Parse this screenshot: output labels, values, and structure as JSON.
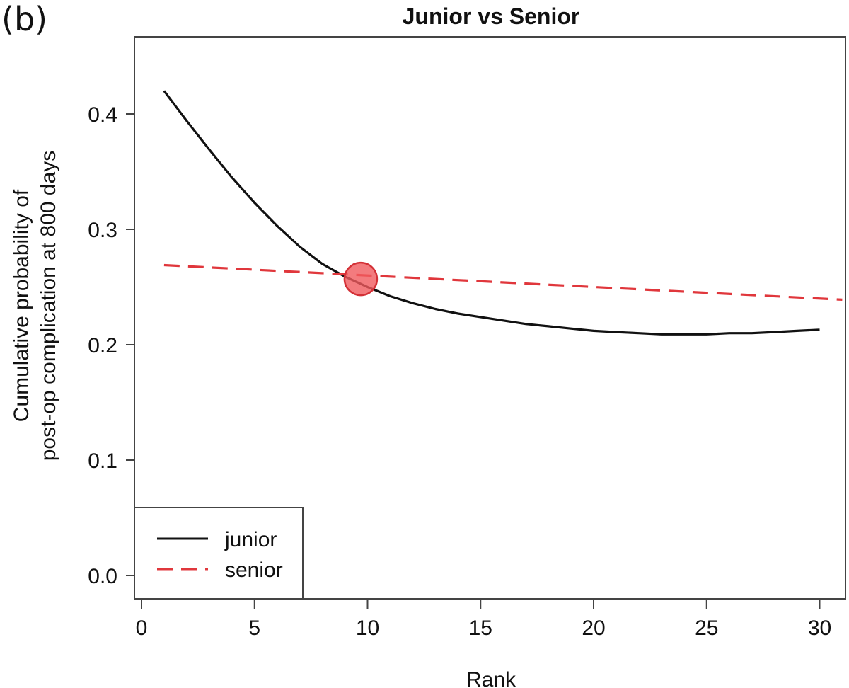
{
  "panel_label": "(b)",
  "chart_data": {
    "type": "line",
    "title": "Junior vs Senior",
    "xlabel": "Rank",
    "ylabel_lines": [
      "Cumulative probability of",
      "post-op complication at 800 days"
    ],
    "xlim": [
      0,
      30.2
    ],
    "ylim": [
      0,
      0.46
    ],
    "xticks": [
      0,
      5,
      10,
      15,
      20,
      25,
      30
    ],
    "xtick_labels": [
      "0",
      "5",
      "10",
      "15",
      "20",
      "25",
      "30"
    ],
    "yticks": [
      0.0,
      0.1,
      0.2,
      0.3,
      0.4
    ],
    "ytick_labels": [
      "0.0",
      "0.1",
      "0.2",
      "0.3",
      "0.4"
    ],
    "grid": false,
    "legend_position": "bottom-left",
    "series": [
      {
        "name": "junior",
        "color": "#111111",
        "dash": "solid",
        "x": [
          1,
          2,
          3,
          4,
          5,
          6,
          7,
          8,
          9,
          10,
          11,
          12,
          13,
          14,
          15,
          16,
          17,
          18,
          19,
          20,
          21,
          22,
          23,
          24,
          25,
          26,
          27,
          28,
          29,
          30
        ],
        "y": [
          0.42,
          0.394,
          0.369,
          0.345,
          0.323,
          0.303,
          0.285,
          0.27,
          0.259,
          0.25,
          0.242,
          0.236,
          0.231,
          0.227,
          0.224,
          0.221,
          0.218,
          0.216,
          0.214,
          0.212,
          0.211,
          0.21,
          0.209,
          0.209,
          0.209,
          0.21,
          0.21,
          0.211,
          0.212,
          0.213
        ]
      },
      {
        "name": "senior",
        "color": "#e0373c",
        "dash": "dashed",
        "x": [
          1,
          31
        ],
        "y": [
          0.269,
          0.239
        ]
      }
    ],
    "annotations": [
      {
        "type": "circle-marker",
        "x": 9.7,
        "y": 0.257,
        "color": "#f05a5e"
      }
    ]
  }
}
